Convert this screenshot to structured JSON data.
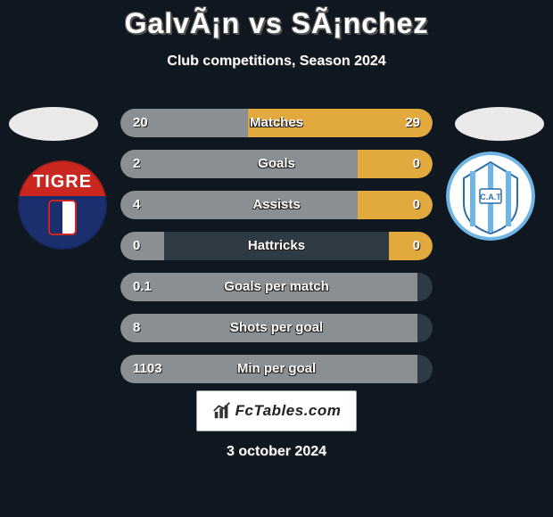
{
  "background_color": "#0f1720",
  "title": "GalvÃ¡n vs SÃ¡nchez",
  "subtitle": "Club competitions, Season 2024",
  "date_text": "3 october 2024",
  "watermark": "FcTables.com",
  "colors": {
    "title": "#ffffff",
    "player_left": "#8a8f94",
    "player_right": "#e1a93e",
    "bar_bg": "#2e3a44",
    "oval": "#eaeaea"
  },
  "stats": [
    {
      "label": "Matches",
      "left_val": "20",
      "right_val": "29",
      "left_pct": 40.8,
      "right_pct": 59.2
    },
    {
      "label": "Goals",
      "left_val": "2",
      "right_val": "0",
      "left_pct": 76.0,
      "right_pct": 24.0
    },
    {
      "label": "Assists",
      "left_val": "4",
      "right_val": "0",
      "left_pct": 76.0,
      "right_pct": 24.0
    },
    {
      "label": "Hattricks",
      "left_val": "0",
      "right_val": "0",
      "left_pct": 14.0,
      "right_pct": 14.0
    },
    {
      "label": "Goals per match",
      "left_val": "0.1",
      "right_val": "",
      "left_pct": 95.0,
      "right_pct": 0.0
    },
    {
      "label": "Shots per goal",
      "left_val": "8",
      "right_val": "",
      "left_pct": 95.0,
      "right_pct": 0.0
    },
    {
      "label": "Min per goal",
      "left_val": "1103",
      "right_val": "",
      "left_pct": 95.0,
      "right_pct": 0.0
    }
  ],
  "crests": {
    "left": {
      "name": "tigre-crest"
    },
    "right": {
      "name": "atletico-tucuman-crest"
    }
  }
}
